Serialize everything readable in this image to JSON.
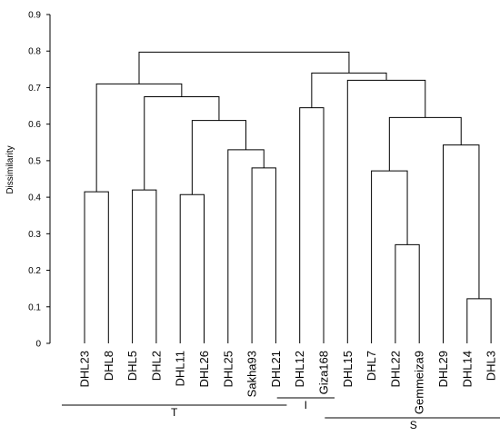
{
  "chart_data": {
    "type": "dendrogram",
    "ylabel": "Dissimilarity",
    "ylim": [
      0,
      0.9
    ],
    "yticks": [
      "0",
      "0.1",
      "0.2",
      "0.3",
      "0.4",
      "0.5",
      "0.6",
      "0.7",
      "0.8",
      "0.9"
    ],
    "leaves": [
      "DHL23",
      "DHL8",
      "DHL5",
      "DHL2",
      "DHL11",
      "DHL26",
      "DHL25",
      "Sakha93",
      "DHL21",
      "DHL12",
      "Giza168",
      "DHL15",
      "DHL7",
      "DHL22",
      "Gemmeiza9",
      "DHL29",
      "DHL14",
      "DHL3"
    ],
    "merges": [
      {
        "id": "n1",
        "left": "DHL23",
        "right": "DHL8",
        "height": 0.415
      },
      {
        "id": "n2",
        "left": "DHL5",
        "right": "DHL2",
        "height": 0.42
      },
      {
        "id": "n3",
        "left": "DHL11",
        "right": "DHL26",
        "height": 0.407
      },
      {
        "id": "n4",
        "left": "Sakha93",
        "right": "DHL21",
        "height": 0.48
      },
      {
        "id": "n5",
        "left": "DHL25",
        "right": "n4",
        "height": 0.53
      },
      {
        "id": "n6",
        "left": "n3",
        "right": "n5",
        "height": 0.61
      },
      {
        "id": "n7",
        "left": "n2",
        "right": "n6",
        "height": 0.675
      },
      {
        "id": "n8",
        "left": "n1",
        "right": "n7",
        "height": 0.71
      },
      {
        "id": "n9",
        "left": "DHL12",
        "right": "Giza168",
        "height": 0.645
      },
      {
        "id": "n10",
        "left": "DHL22",
        "right": "Gemmeiza9",
        "height": 0.27
      },
      {
        "id": "n11",
        "left": "DHL7",
        "right": "n10",
        "height": 0.472
      },
      {
        "id": "n12",
        "left": "DHL14",
        "right": "DHL3",
        "height": 0.122
      },
      {
        "id": "n13",
        "left": "DHL29",
        "right": "n12",
        "height": 0.543
      },
      {
        "id": "n14",
        "left": "n11",
        "right": "n13",
        "height": 0.618
      },
      {
        "id": "n15",
        "left": "DHL15",
        "right": "n14",
        "height": 0.72
      },
      {
        "id": "n16",
        "left": "n9",
        "right": "n15",
        "height": 0.74
      },
      {
        "id": "n17",
        "left": "n8",
        "right": "n16",
        "height": 0.797
      }
    ],
    "groups": [
      {
        "label": "T",
        "from": "DHL23",
        "to": "DHL21"
      },
      {
        "label": "I",
        "from": "DHL12",
        "to": "Giza168"
      },
      {
        "label": "S",
        "from": "DHL15",
        "to": "DHL3"
      }
    ]
  }
}
